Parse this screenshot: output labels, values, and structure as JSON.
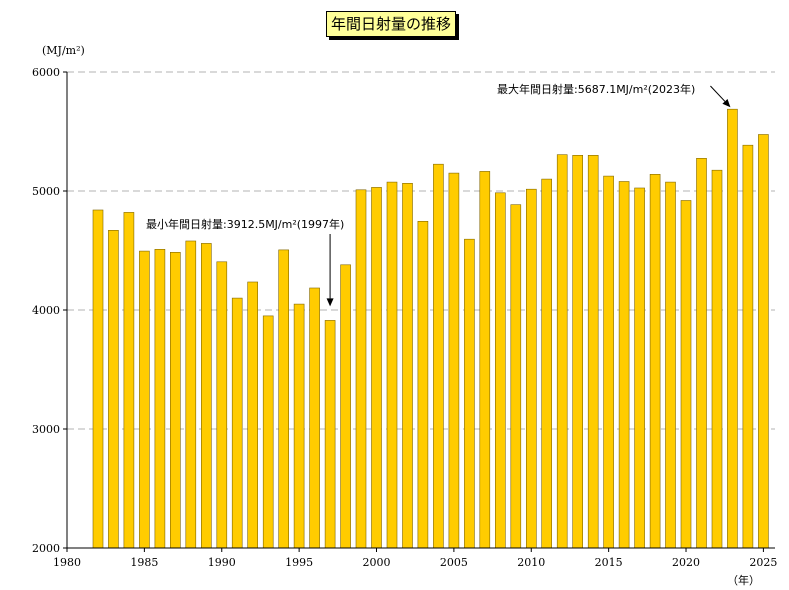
{
  "chart_data": {
    "type": "bar",
    "title": "年間日射量の推移",
    "ylabel": "(MJ/m²)",
    "xlabel": "（年）",
    "ylim": [
      2000,
      6000
    ],
    "yticks": [
      2000,
      3000,
      4000,
      5000,
      6000
    ],
    "xlim": [
      1980,
      2025
    ],
    "xticks": [
      1980,
      1985,
      1990,
      1995,
      2000,
      2005,
      2010,
      2015,
      2020,
      2025
    ],
    "grid": true,
    "bar_color": "#ffcc00",
    "bar_edge_color": "#806600",
    "categories": [
      1982,
      1983,
      1984,
      1985,
      1986,
      1987,
      1988,
      1989,
      1990,
      1991,
      1992,
      1993,
      1994,
      1995,
      1996,
      1997,
      1998,
      1999,
      2000,
      2001,
      2002,
      2003,
      2004,
      2005,
      2006,
      2007,
      2008,
      2009,
      2010,
      2011,
      2012,
      2013,
      2014,
      2015,
      2016,
      2017,
      2018,
      2019,
      2020,
      2021,
      2022,
      2023,
      2024,
      2025
    ],
    "values": [
      4840,
      4670,
      4820,
      4495,
      4510,
      4485,
      4580,
      4560,
      4405,
      4100,
      4235,
      3950,
      4505,
      4050,
      4185,
      3912.5,
      4380,
      5010,
      5030,
      5075,
      5065,
      4745,
      5225,
      5150,
      4595,
      5165,
      4985,
      4885,
      5015,
      5100,
      5305,
      5300,
      5300,
      5125,
      5080,
      5025,
      5140,
      5075,
      4920,
      5275,
      5175,
      5687.1,
      5385,
      5475
    ],
    "annotations": [
      {
        "text": "最小年間日射量:3912.5MJ/m²(1997年)",
        "x": 1997,
        "y": 3912.5
      },
      {
        "text": "最大年間日射量:5687.1MJ/m²(2023年)",
        "x": 2023,
        "y": 5687.1
      }
    ]
  }
}
